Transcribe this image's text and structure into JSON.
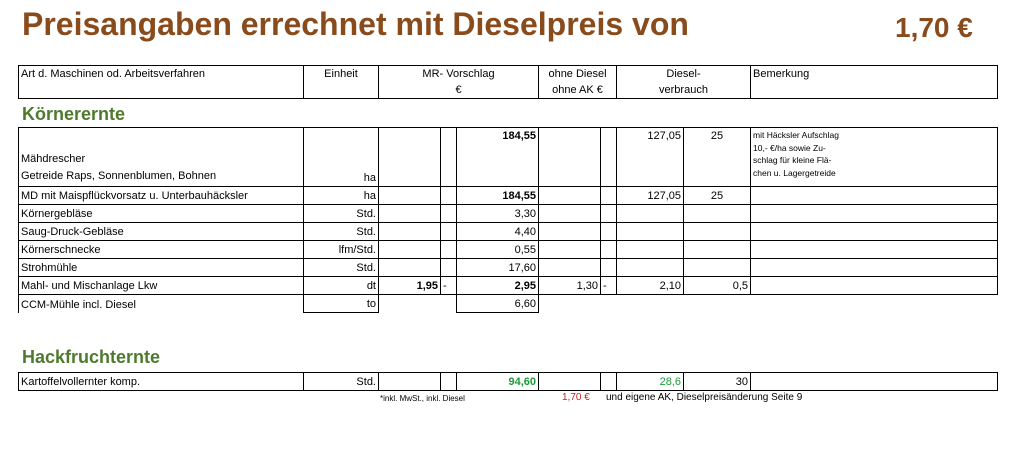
{
  "header": {
    "title": "Preisangaben errechnet mit Dieselpreis von",
    "price": "1,70 €"
  },
  "columns": {
    "art": "Art d. Maschinen od. Arbeitsverfahren",
    "einheit": "Einheit",
    "mr_line1": "MR- Vorschlag",
    "mr_line2": "€",
    "ohne_line1": "ohne Diesel",
    "ohne_line2": "ohne AK €",
    "diesel_line1": "Diesel-",
    "diesel_line2": "verbrauch",
    "bemerkung": "Bemerkung"
  },
  "section1": {
    "title": "Körnerernte",
    "first": {
      "name1": "Mähdrescher",
      "name2": "Getreide Raps, Sonnenblumen, Bohnen",
      "unit": "ha",
      "mr": "184,55",
      "ohne": "127,05",
      "diesel": "25",
      "remark": [
        "mit Häcksler Aufschlag",
        "10,- €/ha sowie Zu-",
        "schlag für kleine Flä-",
        "chen u. Lagergetreide"
      ]
    },
    "rows": [
      {
        "name": "MD mit Maispflückvorsatz u. Unterbauhäcksler",
        "unit": "ha",
        "mr_lo": "",
        "mr_dash": "",
        "mr": "184,55",
        "ohne_lo": "",
        "ohne_dash": "",
        "ohne": "127,05",
        "diesel": "25"
      },
      {
        "name": "Körnergebläse",
        "unit": "Std.",
        "mr_lo": "",
        "mr_dash": "",
        "mr": "3,30",
        "ohne_lo": "",
        "ohne_dash": "",
        "ohne": "",
        "diesel": ""
      },
      {
        "name": "Saug-Druck-Gebläse",
        "unit": "Std.",
        "mr_lo": "",
        "mr_dash": "",
        "mr": "4,40",
        "ohne_lo": "",
        "ohne_dash": "",
        "ohne": "",
        "diesel": ""
      },
      {
        "name": "Körnerschnecke",
        "unit": "lfm/Std.",
        "mr_lo": "",
        "mr_dash": "",
        "mr": "0,55",
        "ohne_lo": "",
        "ohne_dash": "",
        "ohne": "",
        "diesel": ""
      },
      {
        "name": "Strohmühle",
        "unit": "Std.",
        "mr_lo": "",
        "mr_dash": "",
        "mr": "17,60",
        "ohne_lo": "",
        "ohne_dash": "",
        "ohne": "",
        "diesel": ""
      },
      {
        "name": "Mahl- und Mischanlage Lkw",
        "unit": "dt",
        "mr_lo": "1,95",
        "mr_dash": "-",
        "mr": "2,95",
        "ohne_lo": "1,30",
        "ohne_dash": "-",
        "ohne": "2,10",
        "diesel": "0,5"
      },
      {
        "name": "CCM-Mühle incl. Diesel",
        "unit": "to",
        "mr_lo": "",
        "mr_dash": "",
        "mr": "6,60",
        "ohne_lo": "",
        "ohne_dash": "",
        "ohne": "",
        "diesel": ""
      }
    ]
  },
  "section2": {
    "title": "Hackfruchternte",
    "row": {
      "name": "Kartoffelvollernter komp.",
      "unit": "Std.",
      "mr": "94,60",
      "ohne": "28,6",
      "diesel": "30"
    }
  },
  "footer": {
    "note": "*inkl. MwSt., inkl. Diesel",
    "price": "1,70 €",
    "text": "und eigene AK, Dieselpreisänderung Seite 9"
  },
  "colors": {
    "title": "#8a4b1c",
    "section": "#4e7a2e",
    "green_value": "#1a9a3a",
    "red_price": "#cc1f1f"
  }
}
